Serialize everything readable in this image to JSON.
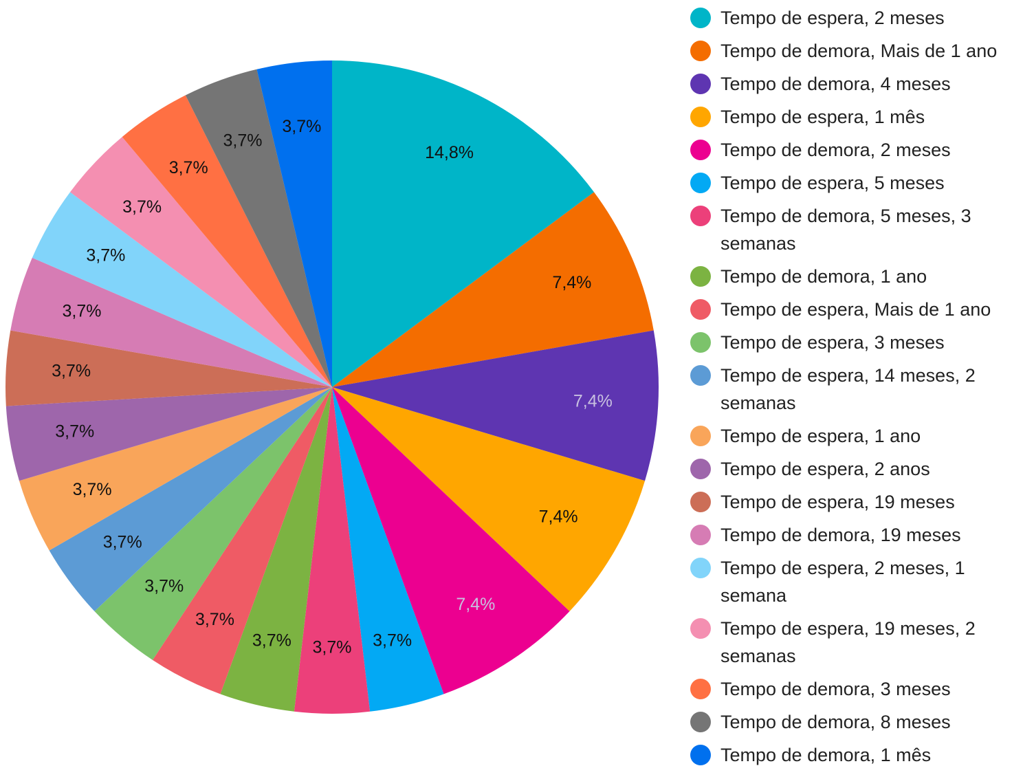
{
  "chart_data": {
    "type": "pie",
    "categories": [
      "Tempo de espera, 2 meses",
      "Tempo de demora, Mais de 1 ano",
      "Tempo de demora, 4 meses",
      "Tempo de espera, 1 mês",
      "Tempo de demora, 2 meses",
      "Tempo de espera, 5 meses",
      "Tempo de demora, 5 meses, 3 semanas",
      "Tempo de demora, 1 ano",
      "Tempo de espera, Mais de 1 ano",
      "Tempo de espera, 3 meses",
      "Tempo de espera, 14 meses, 2 semanas",
      "Tempo de espera, 1 ano",
      "Tempo de espera, 2 anos",
      "Tempo de espera, 19 meses",
      "Tempo de demora, 19 meses",
      "Tempo de espera, 2 meses, 1 semana",
      "Tempo de espera, 19 meses, 2 semanas",
      "Tempo de demora, 3 meses",
      "Tempo de demora, 8 meses",
      "Tempo de demora, 1 mês"
    ],
    "values": [
      14.8,
      7.4,
      7.4,
      7.4,
      7.4,
      3.7,
      3.7,
      3.7,
      3.7,
      3.7,
      3.7,
      3.7,
      3.7,
      3.7,
      3.7,
      3.7,
      3.7,
      3.7,
      3.7,
      3.7
    ],
    "value_labels": [
      "14,8%",
      "7,4%",
      "7,4%",
      "7,4%",
      "7,4%",
      "3,7%",
      "3,7%",
      "3,7%",
      "3,7%",
      "3,7%",
      "3,7%",
      "3,7%",
      "3,7%",
      "3,7%",
      "3,7%",
      "3,7%",
      "3,7%",
      "3,7%",
      "3,7%",
      "3,7%"
    ],
    "colors": [
      "#00b5c8",
      "#f46d00",
      "#5e35b1",
      "#ffa600",
      "#ec0090",
      "#03a9f4",
      "#ec407a",
      "#7cb342",
      "#ef5b65",
      "#7cc36b",
      "#5c9bd5",
      "#f9a55a",
      "#9e66ab",
      "#cc6e57",
      "#d67cb4",
      "#81d4fa",
      "#f48fb1",
      "#ff7043",
      "#757575",
      "#0070ee"
    ],
    "legend": "right"
  }
}
